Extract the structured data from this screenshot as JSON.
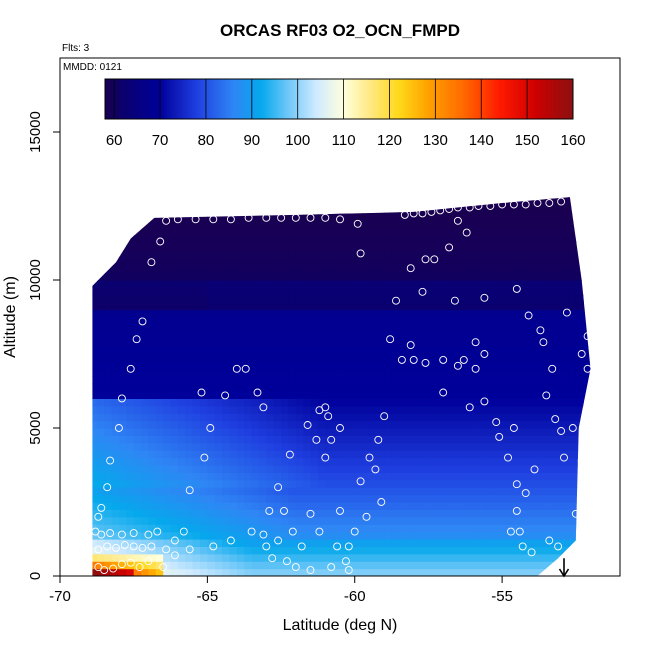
{
  "chart_data": {
    "type": "heatmap",
    "title": "ORCAS RF03 O2_OCN_FMPD",
    "annotations": {
      "flights": "Flts: 3",
      "date": "MMDD: 0121"
    },
    "xlabel": "Latitude (deg N)",
    "ylabel": "Altitude (m)",
    "xlim": [
      -70,
      -51
    ],
    "ylim": [
      0,
      17500
    ],
    "x_ticks": [
      -70,
      -65,
      -60,
      -55
    ],
    "x_tick_labels": [
      "-70",
      "-65",
      "-60",
      "-55"
    ],
    "y_ticks": [
      0,
      5000,
      10000,
      15000
    ],
    "y_tick_labels": [
      "0",
      "5000",
      "10000",
      "15000"
    ],
    "colorbar": {
      "min": 58,
      "max": 160,
      "ticks": [
        60,
        70,
        80,
        90,
        100,
        110,
        120,
        130,
        140,
        150,
        160
      ],
      "tick_labels": [
        "60",
        "70",
        "80",
        "90",
        "100",
        "110",
        "120",
        "130",
        "140",
        "150",
        "160"
      ],
      "colors": [
        [
          58,
          "#1a0050"
        ],
        [
          62,
          "#0a006e"
        ],
        [
          70,
          "#00009a"
        ],
        [
          78,
          "#1f3fe0"
        ],
        [
          86,
          "#2f86f5"
        ],
        [
          92,
          "#05a8ec"
        ],
        [
          98,
          "#70c8f8"
        ],
        [
          104,
          "#cfeaff"
        ],
        [
          110,
          "#ffffdd"
        ],
        [
          116,
          "#ffe880"
        ],
        [
          122,
          "#ffd91a"
        ],
        [
          128,
          "#ffa500"
        ],
        [
          136,
          "#ff6a00"
        ],
        [
          144,
          "#ff1a00"
        ],
        [
          152,
          "#cc0000"
        ],
        [
          160,
          "#8c1010"
        ]
      ]
    },
    "data_region": {
      "top_edge": [
        [
          -68.9,
          9800
        ],
        [
          -68.1,
          10600
        ],
        [
          -67.6,
          11400
        ],
        [
          -66.8,
          12100
        ],
        [
          -62,
          12200
        ],
        [
          -58,
          12300
        ],
        [
          -55,
          12600
        ],
        [
          -52.7,
          12800
        ]
      ],
      "right_edge": [
        [
          -52.7,
          12800
        ],
        [
          -52.3,
          10000
        ],
        [
          -52.0,
          7000
        ],
        [
          -52.4,
          5000
        ],
        [
          -52.5,
          1200
        ],
        [
          -53.1,
          600
        ],
        [
          -53.8,
          0
        ]
      ],
      "left_edge_x": -68.9,
      "left_bottom_x": -68.9
    },
    "arrow_marker": {
      "x": -52.9,
      "y_from": 600,
      "y_to": 0
    },
    "points": [
      [
        -68.7,
        300
      ],
      [
        -68.5,
        200
      ],
      [
        -68.2,
        250
      ],
      [
        -67.9,
        400
      ],
      [
        -67.6,
        450
      ],
      [
        -67.3,
        300
      ],
      [
        -68.7,
        900
      ],
      [
        -68.4,
        1000
      ],
      [
        -68.1,
        950
      ],
      [
        -67.8,
        1050
      ],
      [
        -67.5,
        1000
      ],
      [
        -67.2,
        950
      ],
      [
        -68.8,
        1500
      ],
      [
        -68.6,
        1400
      ],
      [
        -68.3,
        1450
      ],
      [
        -67.9,
        1400
      ],
      [
        -67.5,
        1450
      ],
      [
        -67.0,
        1400
      ],
      [
        -68.7,
        2000
      ],
      [
        -68.6,
        2300
      ],
      [
        -68.4,
        3000
      ],
      [
        -68.3,
        3900
      ],
      [
        -68.0,
        5000
      ],
      [
        -67.9,
        6000
      ],
      [
        -67.6,
        7000
      ],
      [
        -67.4,
        8000
      ],
      [
        -67.2,
        8600
      ],
      [
        -66.9,
        10600
      ],
      [
        -66.6,
        11300
      ],
      [
        -66.4,
        12000
      ],
      [
        -66.0,
        12050
      ],
      [
        -65.4,
        12050
      ],
      [
        -64.8,
        12050
      ],
      [
        -64.2,
        12050
      ],
      [
        -63.6,
        12100
      ],
      [
        -63.0,
        12100
      ],
      [
        -62.5,
        12100
      ],
      [
        -62.0,
        12100
      ],
      [
        -61.5,
        12100
      ],
      [
        -61.0,
        12100
      ],
      [
        -60.5,
        12050
      ],
      [
        -59.9,
        11900
      ],
      [
        -58.3,
        12200
      ],
      [
        -58.0,
        12250
      ],
      [
        -57.7,
        12250
      ],
      [
        -57.4,
        12300
      ],
      [
        -57.1,
        12350
      ],
      [
        -56.8,
        12400
      ],
      [
        -56.5,
        12450
      ],
      [
        -56.1,
        12450
      ],
      [
        -55.8,
        12500
      ],
      [
        -55.4,
        12500
      ],
      [
        -55.0,
        12550
      ],
      [
        -54.6,
        12550
      ],
      [
        -54.2,
        12550
      ],
      [
        -53.8,
        12600
      ],
      [
        -53.4,
        12600
      ],
      [
        -53.0,
        12650
      ],
      [
        -56.5,
        12000
      ],
      [
        -56.2,
        11600
      ],
      [
        -56.8,
        11100
      ],
      [
        -57.3,
        10700
      ],
      [
        -57.6,
        10700
      ],
      [
        -58.1,
        10400
      ],
      [
        -59.8,
        10900
      ],
      [
        -58.6,
        9300
      ],
      [
        -57.7,
        9600
      ],
      [
        -56.6,
        9300
      ],
      [
        -55.6,
        9400
      ],
      [
        -54.5,
        9700
      ],
      [
        -54.1,
        8800
      ],
      [
        -53.7,
        8300
      ],
      [
        -52.8,
        8900
      ],
      [
        -52.1,
        8100
      ],
      [
        -52.3,
        7500
      ],
      [
        -52.1,
        7000
      ],
      [
        -52.6,
        5000
      ],
      [
        -53.6,
        7900
      ],
      [
        -53.3,
        7000
      ],
      [
        -58.8,
        8000
      ],
      [
        -58.1,
        7800
      ],
      [
        -58.4,
        7300
      ],
      [
        -58.0,
        7300
      ],
      [
        -57.6,
        7200
      ],
      [
        -57.0,
        7300
      ],
      [
        -56.3,
        7300
      ],
      [
        -55.9,
        7900
      ],
      [
        -55.6,
        7500
      ],
      [
        -55.9,
        7000
      ],
      [
        -56.5,
        7100
      ],
      [
        -57.0,
        6200
      ],
      [
        -56.1,
        5700
      ],
      [
        -55.6,
        5900
      ],
      [
        -55.2,
        5200
      ],
      [
        -55.1,
        4700
      ],
      [
        -54.8,
        4000
      ],
      [
        -54.6,
        5000
      ],
      [
        -53.5,
        6100
      ],
      [
        -53.2,
        5300
      ],
      [
        -53.0,
        4900
      ],
      [
        -52.9,
        4000
      ],
      [
        -53.9,
        3600
      ],
      [
        -54.5,
        3100
      ],
      [
        -54.2,
        2800
      ],
      [
        -54.5,
        2200
      ],
      [
        -54.7,
        1500
      ],
      [
        -54.4,
        1500
      ],
      [
        -54.3,
        1000
      ],
      [
        -54.0,
        800
      ],
      [
        -53.4,
        1200
      ],
      [
        -53.1,
        1000
      ],
      [
        -52.5,
        2100
      ],
      [
        -52.3,
        3000
      ],
      [
        -52.3,
        3900
      ],
      [
        -59.0,
        5400
      ],
      [
        -59.2,
        4600
      ],
      [
        -59.5,
        4000
      ],
      [
        -59.8,
        3200
      ],
      [
        -59.3,
        3600
      ],
      [
        -59.1,
        2500
      ],
      [
        -59.6,
        2000
      ],
      [
        -60.0,
        1500
      ],
      [
        -60.2,
        1000
      ],
      [
        -60.3,
        500
      ],
      [
        -60.6,
        1000
      ],
      [
        -60.5,
        2200
      ],
      [
        -61.2,
        1500
      ],
      [
        -61.5,
        2100
      ],
      [
        -61.8,
        1000
      ],
      [
        -61.0,
        4000
      ],
      [
        -61.3,
        4600
      ],
      [
        -60.8,
        4600
      ],
      [
        -60.5,
        5000
      ],
      [
        -60.9,
        5400
      ],
      [
        -61.2,
        5600
      ],
      [
        -61.0,
        5700
      ],
      [
        -61.6,
        5100
      ],
      [
        -62.2,
        4100
      ],
      [
        -63.1,
        5700
      ],
      [
        -63.3,
        6200
      ],
      [
        -63.7,
        7000
      ],
      [
        -64.0,
        7000
      ],
      [
        -64.4,
        6100
      ],
      [
        -65.2,
        6200
      ],
      [
        -64.9,
        5000
      ],
      [
        -65.1,
        4000
      ],
      [
        -65.6,
        2900
      ],
      [
        -65.8,
        1500
      ],
      [
        -66.1,
        1200
      ],
      [
        -66.4,
        900
      ],
      [
        -66.1,
        700
      ],
      [
        -65.6,
        900
      ],
      [
        -64.8,
        1000
      ],
      [
        -64.2,
        1200
      ],
      [
        -63.5,
        1500
      ],
      [
        -63.1,
        1400
      ],
      [
        -62.9,
        2200
      ],
      [
        -62.6,
        3000
      ],
      [
        -62.4,
        2200
      ],
      [
        -62.1,
        1500
      ],
      [
        -62.6,
        1200
      ],
      [
        -63.0,
        1000
      ],
      [
        -62.8,
        600
      ],
      [
        -62.3,
        500
      ],
      [
        -62.0,
        300
      ],
      [
        -61.5,
        200
      ],
      [
        -60.8,
        300
      ],
      [
        -60.2,
        200
      ],
      [
        -66.7,
        1500
      ],
      [
        -66.9,
        1000
      ],
      [
        -67.0,
        500
      ],
      [
        -66.5,
        300
      ]
    ]
  }
}
